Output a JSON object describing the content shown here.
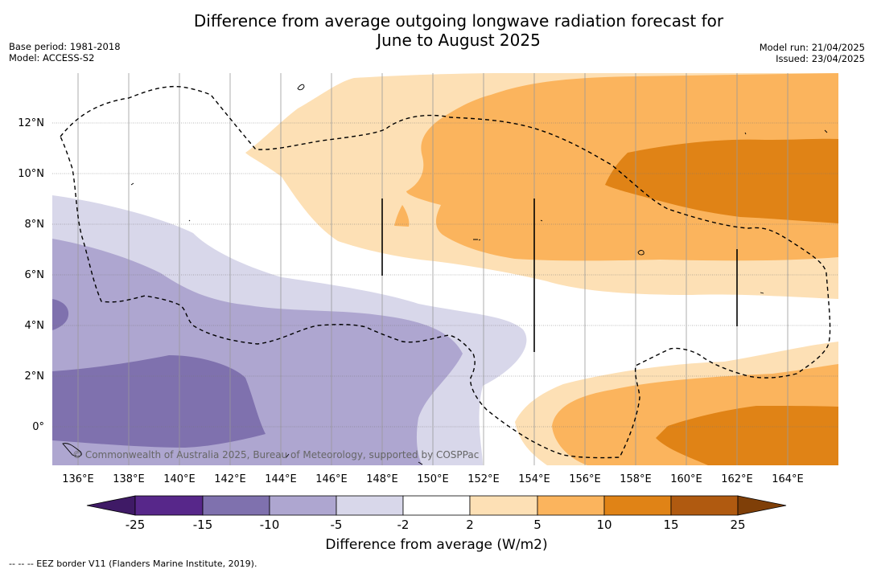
{
  "title": {
    "line1": "Difference from average outgoing longwave radiation forecast for",
    "line2": "June to August 2025"
  },
  "meta_left": {
    "base_period": "Base period: 1981-2018",
    "model": "Model: ACCESS-S2"
  },
  "meta_right": {
    "model_run": "Model run: 21/04/2025",
    "issued": "Issued: 23/04/2025"
  },
  "map": {
    "copyright": "© Commonwealth of Australia 2025, Bureau of Meteorology, supported by COSPPac",
    "lat_labels": [
      "12°N",
      "10°N",
      "8°N",
      "6°N",
      "4°N",
      "2°N",
      "0°"
    ],
    "lon_labels": [
      "136°E",
      "138°E",
      "140°E",
      "142°E",
      "144°E",
      "146°E",
      "148°E",
      "150°E",
      "152°E",
      "154°E",
      "156°E",
      "158°E",
      "160°E",
      "162°E",
      "164°E"
    ],
    "grid": true
  },
  "colorbar": {
    "label": "Difference from average (W/m2)",
    "ticks": [
      "-25",
      "-15",
      "-10",
      "-5",
      "-2",
      "2",
      "5",
      "10",
      "15",
      "25"
    ],
    "colors": [
      "#3f1a66",
      "#57278a",
      "#7f71ae",
      "#aea6d0",
      "#d8d7ea",
      "#ffffff",
      "#fde0b5",
      "#fbb45d",
      "#e08316",
      "#b05a10",
      "#7f3f08"
    ]
  },
  "footnote": "--  --  -- EEZ border V11 (Flanders Marine Institute, 2019)."
}
